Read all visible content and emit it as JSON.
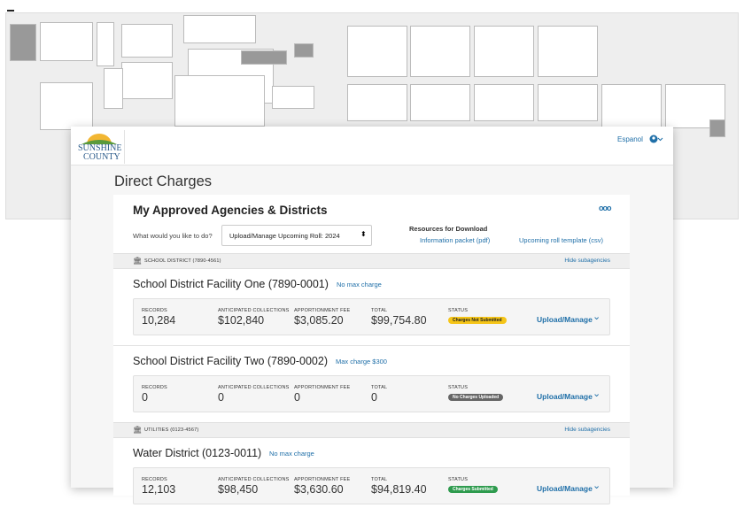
{
  "header": {
    "brand_line1": "SUNSHINE",
    "brand_line2": "COUNTY",
    "language": "Espanol"
  },
  "page_title": "Direct Charges",
  "panel": {
    "heading": "My Approved Agencies & Districts",
    "more": "ooo",
    "select_label": "What would you like to do?",
    "select_value": "Upload/Manage Upcoming Roll: 2024",
    "resources_title": "Resources for Download",
    "resources": [
      "Information packet (pdf)",
      "Upcoming roll template (csv)"
    ]
  },
  "stat_labels": [
    "RECORDS",
    "ANTICIPATED COLLECTIONS",
    "APPORTIONMENT FEE",
    "TOTAL",
    "STATUS"
  ],
  "action": "Upload/Manage",
  "hide_label": "Hide subagencies",
  "groups": [
    {
      "name": "SCHOOL DISTRICT (7890-4561)",
      "items": [
        {
          "name": "School District Facility One (7890-0001)",
          "limit": "No max charge",
          "stats": [
            "10,284",
            "$102,840",
            "$3,085.20",
            "$99,754.80"
          ],
          "status": "Charges Not Submitted",
          "status_kind": "warn"
        },
        {
          "name": "School District Facility Two (7890-0002)",
          "limit": "Max charge $300",
          "stats": [
            "0",
            "0",
            "0",
            "0"
          ],
          "status": "No Charges Uploaded",
          "status_kind": "none"
        }
      ]
    },
    {
      "name": "UTILITIES (0123-4567)",
      "items": [
        {
          "name": "Water District (0123-0011)",
          "limit": "No max charge",
          "stats": [
            "12,103",
            "$98,450",
            "$3,630.60",
            "$94,819.40"
          ],
          "status": "Charges Submitted",
          "status_kind": "ok"
        }
      ]
    }
  ]
}
